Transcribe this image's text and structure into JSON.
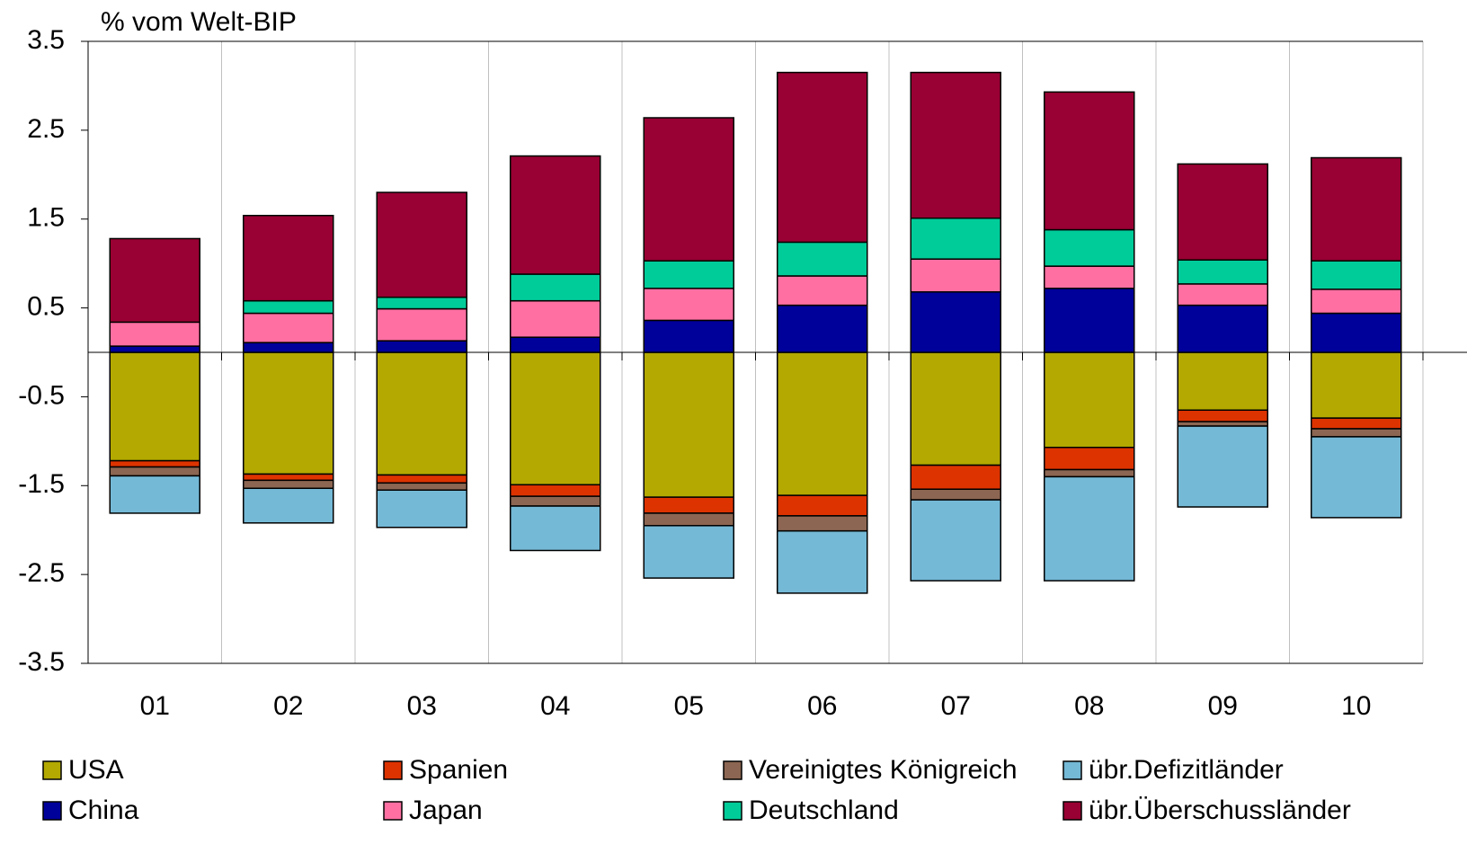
{
  "chart_data": {
    "type": "stacked_bar",
    "y_label": "% vom Welt-BIP",
    "categories": [
      "01",
      "02",
      "03",
      "04",
      "05",
      "06",
      "07",
      "08",
      "09",
      "10"
    ],
    "ylim": [
      -3.5,
      3.5
    ],
    "yticks": [
      -3.5,
      -2.5,
      -1.5,
      -0.5,
      0.5,
      1.5,
      2.5,
      3.5
    ],
    "grid": true,
    "legend": "bottom",
    "series": [
      {
        "name": "USA",
        "color": "#b3a900",
        "values": [
          -1.22,
          -1.37,
          -1.38,
          -1.49,
          -1.63,
          -1.61,
          -1.27,
          -1.07,
          -0.65,
          -0.74
        ]
      },
      {
        "name": "Spanien",
        "color": "#dd3300",
        "values": [
          -0.07,
          -0.07,
          -0.09,
          -0.13,
          -0.18,
          -0.23,
          -0.27,
          -0.25,
          -0.13,
          -0.12
        ]
      },
      {
        "name": "Vereinigtes Königreich",
        "color": "#8c6652",
        "values": [
          -0.1,
          -0.09,
          -0.08,
          -0.11,
          -0.14,
          -0.17,
          -0.12,
          -0.08,
          -0.05,
          -0.09
        ]
      },
      {
        "name": "übr.Defizitländer",
        "color": "#74b9d6",
        "values": [
          -0.42,
          -0.39,
          -0.42,
          -0.5,
          -0.59,
          -0.7,
          -0.91,
          -1.17,
          -0.91,
          -0.91
        ]
      },
      {
        "name": "China",
        "color": "#00009a",
        "values": [
          0.07,
          0.11,
          0.13,
          0.17,
          0.36,
          0.53,
          0.68,
          0.72,
          0.53,
          0.44
        ]
      },
      {
        "name": "Japan",
        "color": "#ff6fa2",
        "values": [
          0.27,
          0.33,
          0.36,
          0.41,
          0.36,
          0.33,
          0.37,
          0.25,
          0.24,
          0.27
        ]
      },
      {
        "name": "Deutschland",
        "color": "#00cc99",
        "values": [
          0,
          0.14,
          0.13,
          0.3,
          0.31,
          0.38,
          0.46,
          0.41,
          0.27,
          0.32
        ]
      },
      {
        "name": "übr.Überschussländer",
        "color": "#990033",
        "values": [
          0.94,
          0.96,
          1.18,
          1.33,
          1.61,
          1.91,
          1.64,
          1.55,
          1.08,
          1.16
        ]
      }
    ]
  }
}
